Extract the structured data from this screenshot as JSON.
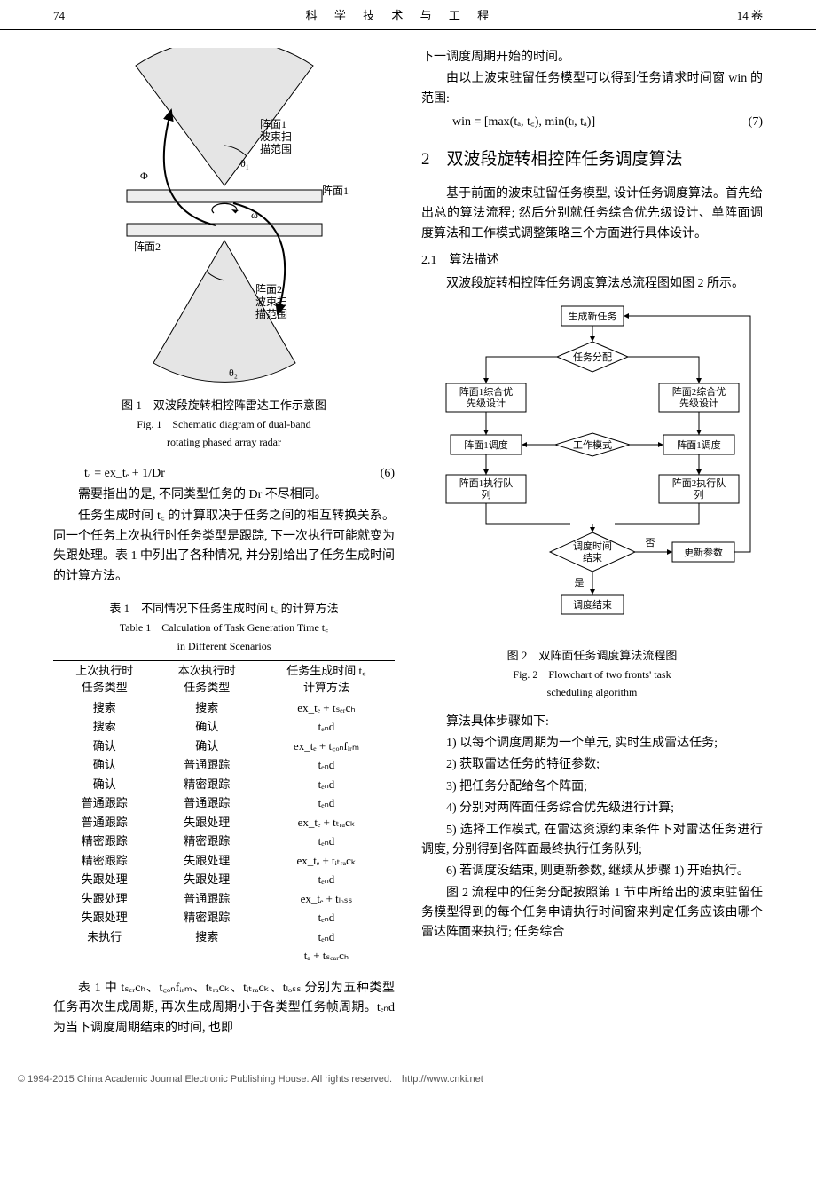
{
  "header": {
    "page_num": "74",
    "journal": "科 学 技 术 与 工 程",
    "volume": "14 卷"
  },
  "fig1": {
    "caption_cn": "图 1　双波段旋转相控阵雷达工作示意图",
    "caption_en1": "Fig. 1　Schematic diagram of dual-band",
    "caption_en2": "rotating phased array radar",
    "labels": {
      "face1_range": "阵面1\n波束扫\n描范围",
      "face1": "阵面1",
      "face2": "阵面2",
      "face2_range": "阵面2\n波束扫\n描范围",
      "phi": "Φ",
      "omega": "ω",
      "theta1": "θ₁",
      "theta2": "θ₂"
    }
  },
  "eq6": {
    "text": "tₐ = ex_tₑ + 1/Dr",
    "num": "(6)"
  },
  "left": {
    "p1": "需要指出的是, 不同类型任务的 Dr 不尽相同。",
    "p2": "任务生成时间 t꜀ 的计算取决于任务之间的相互转换关系。同一个任务上次执行时任务类型是跟踪, 下一次执行可能就变为失跟处理。表 1 中列出了各种情况, 并分别给出了任务生成时间的计算方法。",
    "tbl_cap_cn": "表 1　不同情况下任务生成时间 t꜀ 的计算方法",
    "tbl_cap_en1": "Table 1　Calculation of Task Generation Time t꜀",
    "tbl_cap_en2": "in Different Scenarios",
    "tbl_head": [
      "上次执行时\n任务类型",
      "本次执行时\n任务类型",
      "任务生成时间 t꜀\n计算方法"
    ],
    "tbl_rows": [
      [
        "搜索",
        "搜索",
        "ex_tₑ + tₛₑᵣcₕ"
      ],
      [
        "搜索",
        "确认",
        "tₑₙd"
      ],
      [
        "确认",
        "确认",
        "ex_tₑ + t꜀ₒₙfᵢᵣₘ"
      ],
      [
        "确认",
        "普通跟踪",
        "tₑₙd"
      ],
      [
        "确认",
        "精密跟踪",
        "tₑₙd"
      ],
      [
        "普通跟踪",
        "普通跟踪",
        "tₑₙd"
      ],
      [
        "普通跟踪",
        "失跟处理",
        "ex_tₑ + tₜᵣₐcₖ"
      ],
      [
        "精密跟踪",
        "精密跟踪",
        "tₑₙd"
      ],
      [
        "精密跟踪",
        "失跟处理",
        "ex_tₑ + tᵢₜᵣₐcₖ"
      ],
      [
        "失跟处理",
        "失跟处理",
        "tₑₙd"
      ],
      [
        "失跟处理",
        "普通跟踪",
        "ex_tₑ + tₗₒₛₛ"
      ],
      [
        "失跟处理",
        "精密跟踪",
        "tₑₙd"
      ],
      [
        "未执行",
        "搜索",
        "tₑₙd"
      ],
      [
        "",
        "",
        "tₐ + tₛₑₐᵣcₕ"
      ]
    ],
    "p3": "表 1 中 tₛₑᵣcₕ、t꜀ₒₙfᵢᵣₘ、tₜᵣₐcₖ、tᵢₜᵣₐcₖ、tₗₒₛₛ 分别为五种类型任务再次生成周期, 再次生成周期小于各类型任务帧周期。tₑₙd 为当下调度周期结束的时间, 也即"
  },
  "right": {
    "p1": "下一调度周期开始的时间。",
    "p2": "由以上波束驻留任务模型可以得到任务请求时间窗 win 的范围:",
    "eq7": {
      "text": "win = [max(tₐ, t꜀), min(tₗ, tₐ)]",
      "num": "(7)"
    },
    "h2": "2　双波段旋转相控阵任务调度算法",
    "p3": "基于前面的波束驻留任务模型, 设计任务调度算法。首先给出总的算法流程; 然后分别就任务综合优先级设计、单阵面调度算法和工作模式调整策略三个方面进行具体设计。",
    "sub21_num": "2.1",
    "sub21_title": "算法描述",
    "p4": "双波段旋转相控阵任务调度算法总流程图如图 2 所示。",
    "fig2_nodes": {
      "n1": "生成新任务",
      "n2": "任务分配",
      "n3": "阵面1综合优\n先级设计",
      "n4": "阵面2综合优\n先级设计",
      "n5": "阵面1调度",
      "n6": "工作模式",
      "n7": "阵面1调度",
      "n8": "阵面1执行队\n列",
      "n9": "阵面2执行队\n列",
      "n10": "调度时间\n结束",
      "n11": "更新参数",
      "n12": "调度结束",
      "yes": "是",
      "no": "否"
    },
    "fig2_cap_cn": "图 2　双阵面任务调度算法流程图",
    "fig2_cap_en1": "Fig. 2　Flowchart of two fronts' task",
    "fig2_cap_en2": "scheduling algorithm",
    "p5": "算法具体步骤如下:",
    "steps": [
      "1) 以每个调度周期为一个单元, 实时生成雷达任务;",
      "2) 获取雷达任务的特征参数;",
      "3) 把任务分配给各个阵面;",
      "4) 分别对两阵面任务综合优先级进行计算;",
      "5) 选择工作模式, 在雷达资源约束条件下对雷达任务进行调度, 分别得到各阵面最终执行任务队列;",
      "6) 若调度没结束, 则更新参数, 继续从步骤 1) 开始执行。"
    ],
    "p6": "图 2 流程中的任务分配按照第 1 节中所给出的波束驻留任务模型得到的每个任务申请执行时间窗来判定任务应该由哪个雷达阵面来执行; 任务综合"
  },
  "footer": "© 1994-2015 China Academic Journal Electronic Publishing House. All rights reserved.　http://www.cnki.net"
}
